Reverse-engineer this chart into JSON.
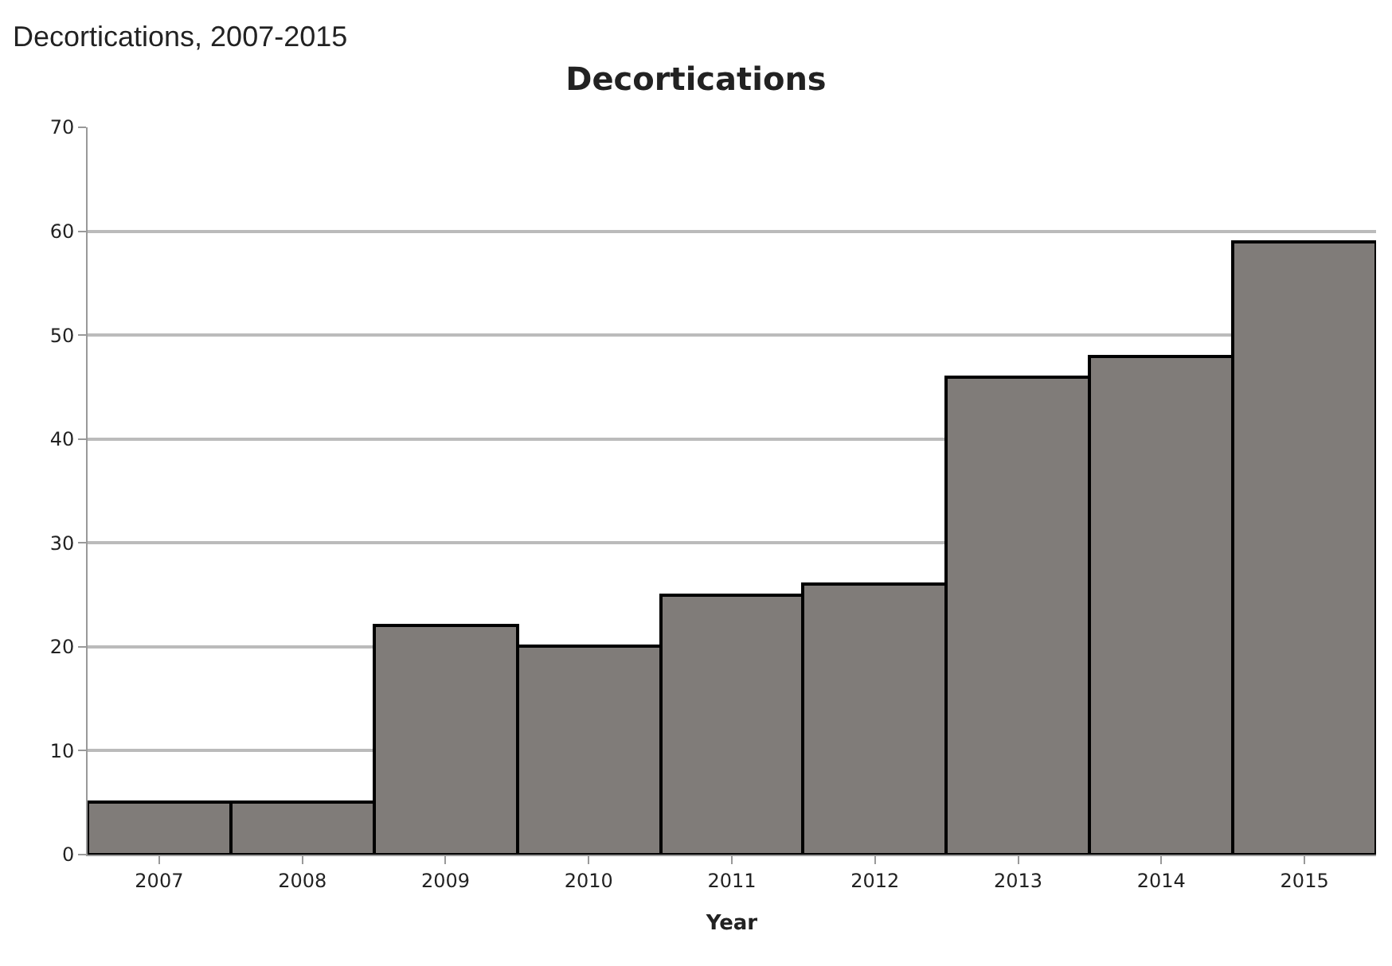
{
  "chart_data": {
    "type": "bar",
    "title": "Decortications",
    "xlabel": "Year",
    "annotations": [
      "Decortications, 2007-2015"
    ],
    "categories": [
      "2007",
      "2008",
      "2009",
      "2010",
      "2011",
      "2012",
      "2013",
      "2014",
      "2015"
    ],
    "values": [
      5,
      5,
      22,
      20,
      25,
      26,
      46,
      48,
      59
    ],
    "color": "#807c79",
    "ylim": [
      0,
      70
    ],
    "yticks": [
      0,
      10,
      20,
      30,
      40,
      50,
      60,
      70
    ],
    "grid": "y",
    "legend": false
  }
}
